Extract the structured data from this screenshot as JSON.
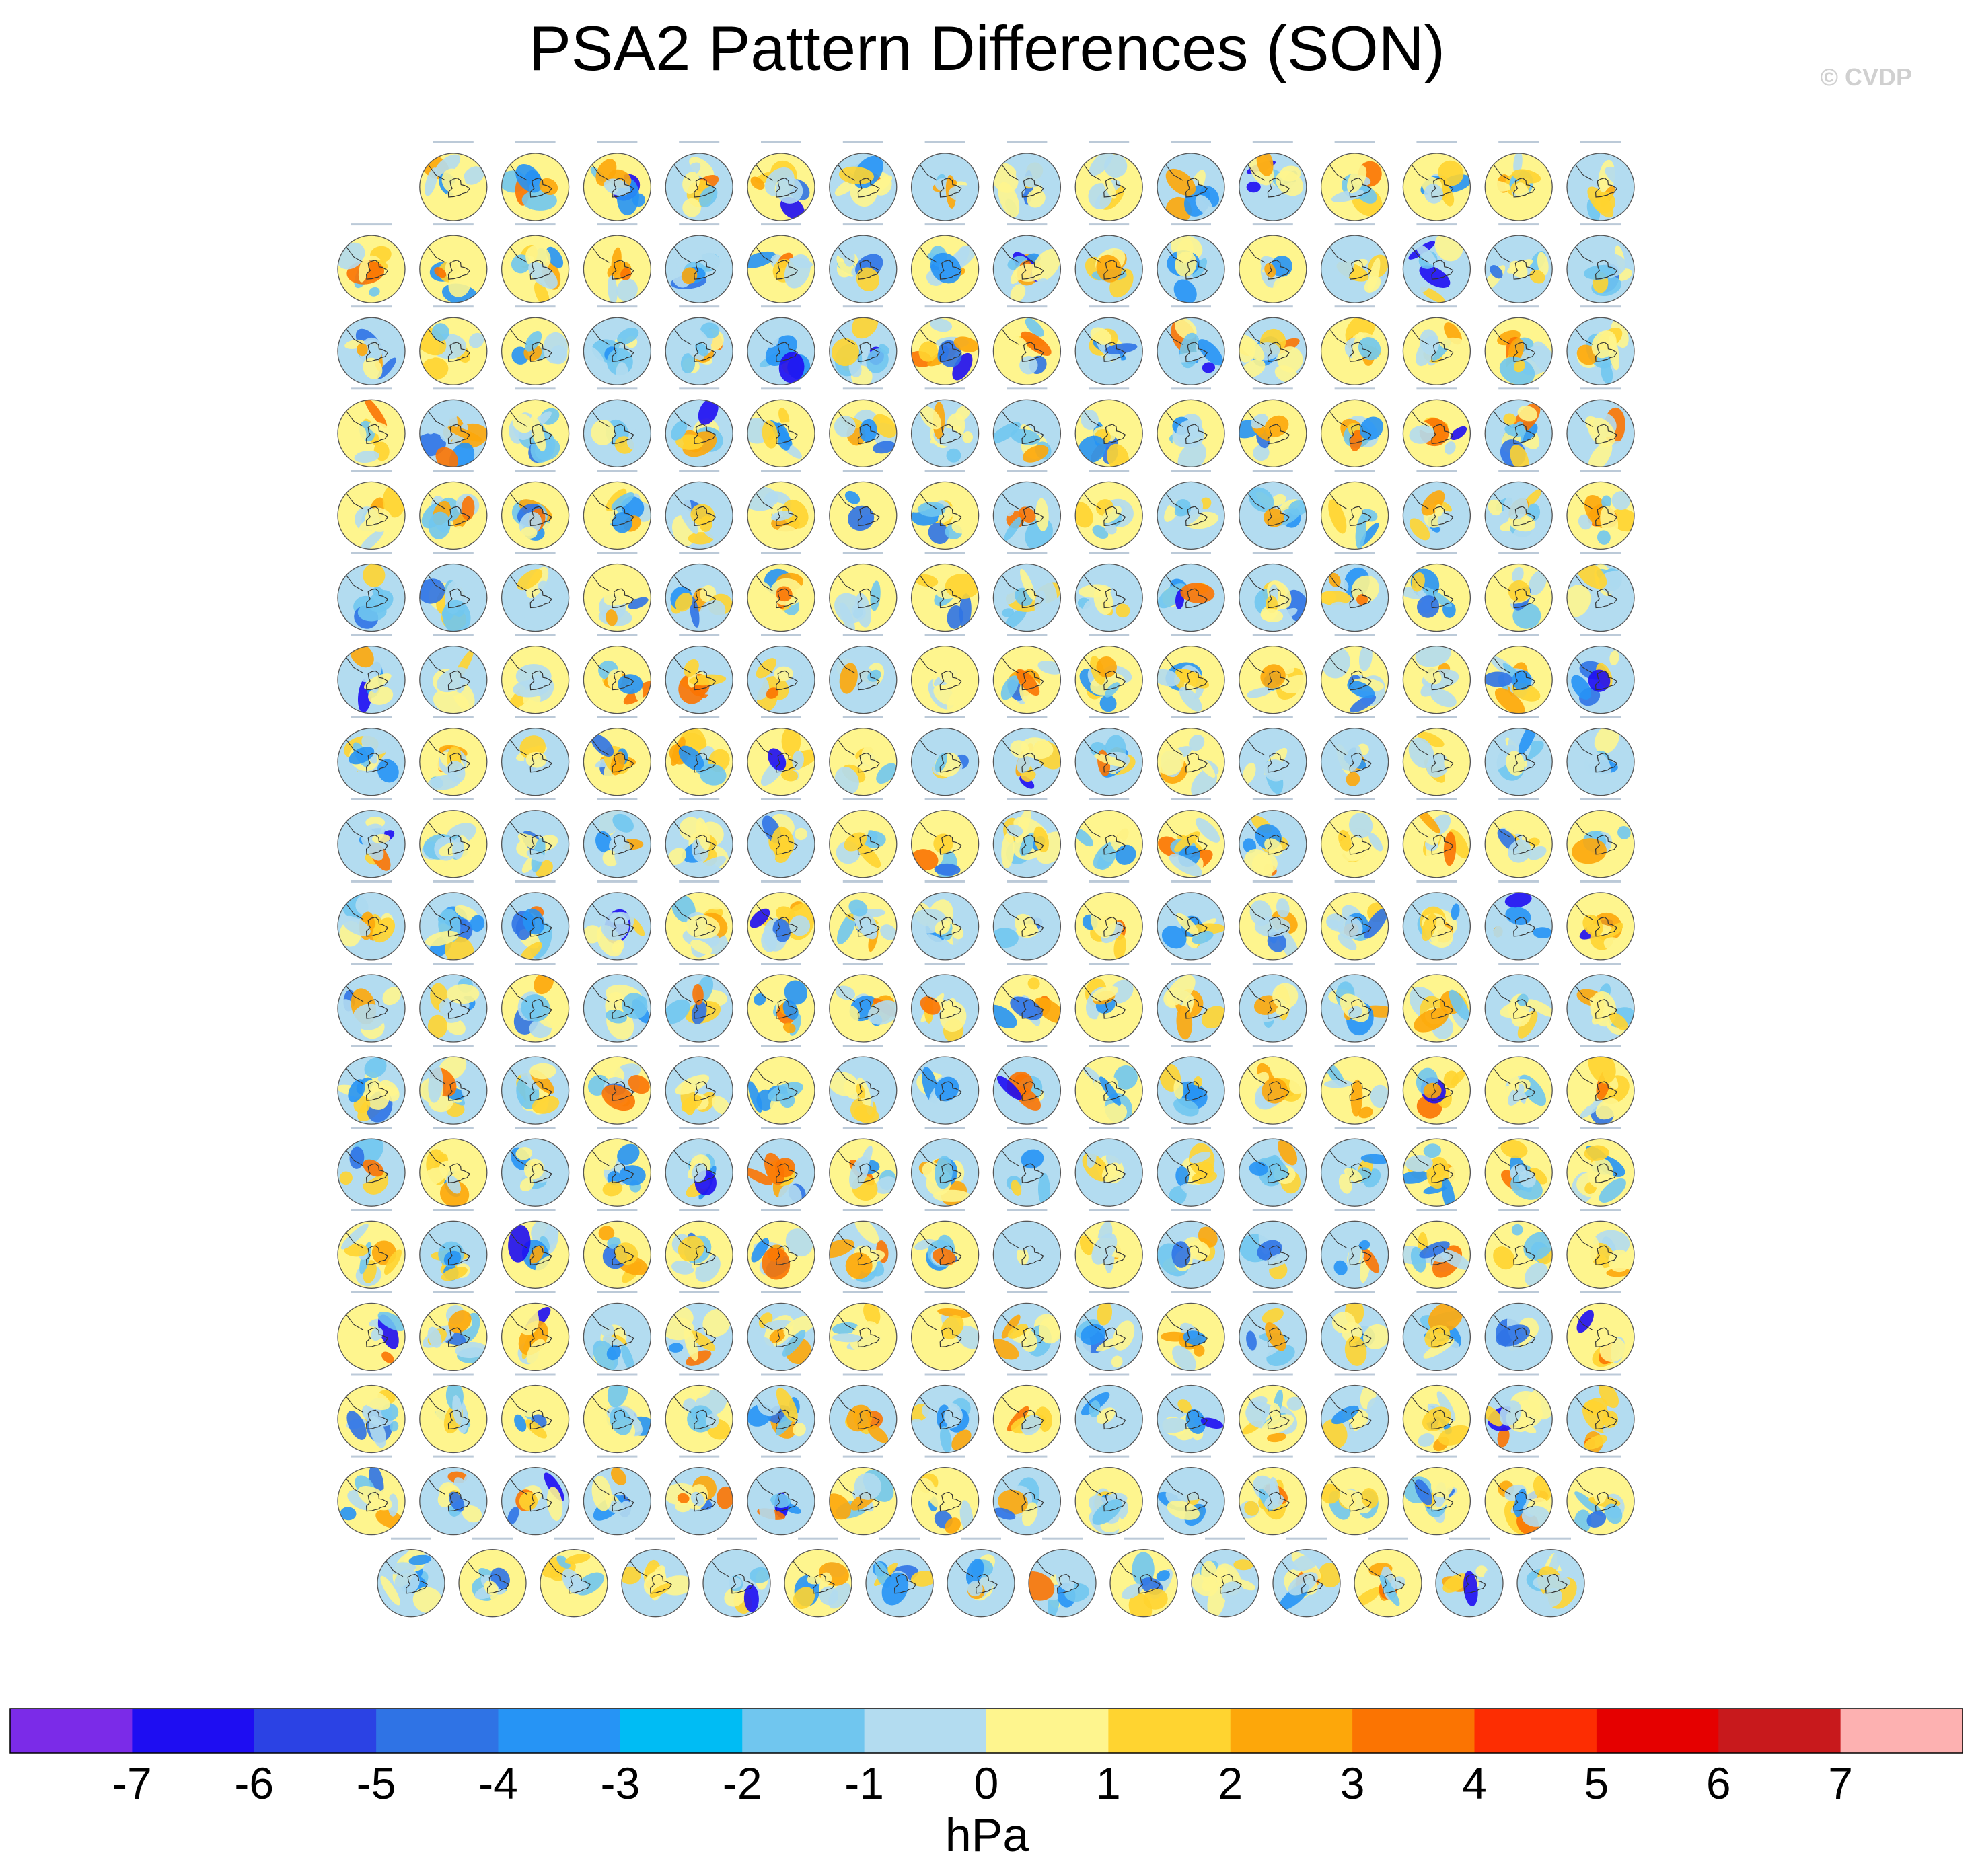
{
  "title": "PSA2 Pattern Differences (SON)",
  "watermark": "© CVDP",
  "chart_data": {
    "type": "panel-grid",
    "title": "PSA2 Pattern Differences (SON)",
    "description_of_panels": "Grid of small south-polar stereographic maps (Antarctic coastline) showing filled contour PSA2 pattern differences",
    "grid": {
      "row_panel_counts": [
        15,
        16,
        16,
        16,
        16,
        16,
        16,
        16,
        16,
        16,
        16,
        16,
        16,
        16,
        16,
        16,
        16,
        15
      ],
      "total_panels": 286
    },
    "colorbar": {
      "units": "hPa",
      "tick_labels": [
        "-7",
        "-6",
        "-5",
        "-4",
        "-3",
        "-2",
        "-1",
        "0",
        "1",
        "2",
        "3",
        "4",
        "5",
        "6",
        "7"
      ],
      "levels": [
        -7,
        -6,
        -5,
        -4,
        -3,
        -2,
        -1,
        0,
        1,
        2,
        3,
        4,
        5,
        6,
        7
      ],
      "colors": [
        "#7b2be8",
        "#1e0df2",
        "#2b42e4",
        "#2f73e5",
        "#2694f5",
        "#00bcf4",
        "#70c6ef",
        "#b3dcf0",
        "#fef58e",
        "#ffd430",
        "#fda70a",
        "#fb7402",
        "#fd2d02",
        "#e50000",
        "#c8191c",
        "#fdb1b1"
      ]
    }
  }
}
